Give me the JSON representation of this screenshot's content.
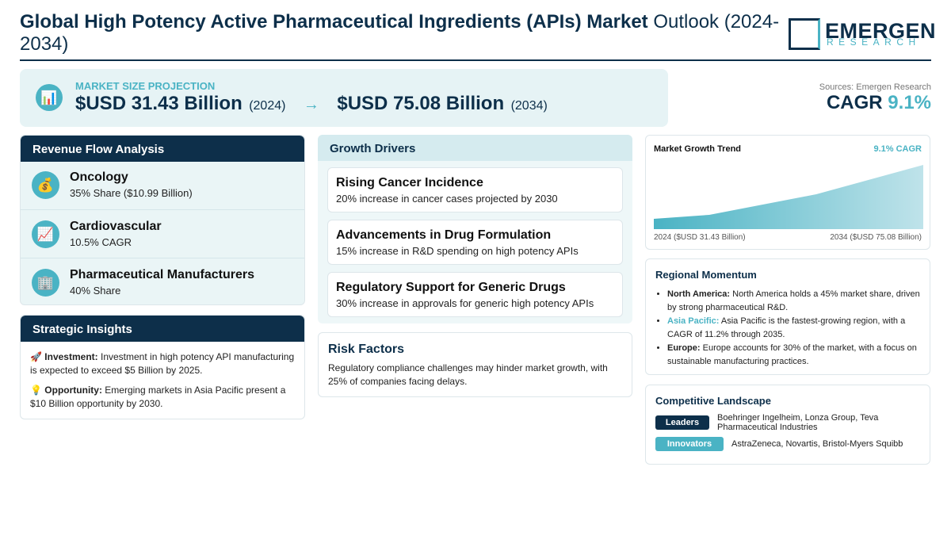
{
  "header": {
    "title_bold": "Global High Potency Active Pharmaceutical Ingredients (APIs) Market",
    "title_rest": "Outlook (2024-2034)",
    "logo_top": "EMERGEN",
    "logo_bottom": "RESEARCH"
  },
  "projection": {
    "icon": "📊",
    "label": "MARKET SIZE PROJECTION",
    "start_value": "$USD 31.43 Billion",
    "start_year": "(2024)",
    "arrow": "→",
    "end_value": "$USD 75.08 Billion",
    "end_year": "(2034)"
  },
  "summary": {
    "source": "Sources: Emergen Research",
    "cagr_label": "CAGR",
    "cagr_value": "9.1%"
  },
  "revenue_flow": {
    "title": "Revenue Flow Analysis",
    "items": [
      {
        "icon": "💰",
        "name": "Oncology",
        "detail": "35% Share ($10.99 Billion)"
      },
      {
        "icon": "📈",
        "name": "Cardiovascular",
        "detail": "10.5% CAGR"
      },
      {
        "icon": "🏢",
        "name": "Pharmaceutical Manufacturers",
        "detail": "40% Share"
      }
    ]
  },
  "strategic_insights": {
    "title": "Strategic Insights",
    "items": [
      {
        "icon": "🚀",
        "label": "Investment:",
        "text": "Investment in high potency API manufacturing is expected to exceed $5 Billion by 2025."
      },
      {
        "icon": "💡",
        "label": "Opportunity:",
        "text": "Emerging markets in Asia Pacific present a $10 Billion opportunity by 2030."
      }
    ]
  },
  "growth_drivers": {
    "title": "Growth Drivers",
    "items": [
      {
        "name": "Rising Cancer Incidence",
        "detail": "20% increase in cancer cases projected by 2030"
      },
      {
        "name": "Advancements in Drug Formulation",
        "detail": "15% increase in R&D spending on high potency APIs"
      },
      {
        "name": "Regulatory Support for Generic Drugs",
        "detail": "30% increase in approvals for generic high potency APIs"
      }
    ]
  },
  "risk_factors": {
    "title": "Risk Factors",
    "text": "Regulatory compliance challenges may hinder market growth, with 25% of companies facing delays."
  },
  "trend": {
    "title": "Market Growth Trend",
    "badge": "9.1% CAGR",
    "start_label": "2024 ($USD 31.43 Billion)",
    "end_label": "2034 ($USD 75.08 Billion)"
  },
  "regional_momentum": {
    "title": "Regional Momentum",
    "items": [
      {
        "label": "North America:",
        "text": "North America holds a 45% market share, driven by strong pharmaceutical R&D."
      },
      {
        "label": "Asia Pacific:",
        "text": "Asia Pacific is the fastest-growing region, with a CAGR of 11.2% through 2035."
      },
      {
        "label": "Europe:",
        "text": "Europe accounts for 30% of the market, with a focus on sustainable manufacturing practices."
      }
    ]
  },
  "competitive_landscape": {
    "title": "Competitive Landscape",
    "rows": [
      {
        "tag": "Leaders",
        "names": "Boehringer Ingelheim, Lonza Group, Teva Pharmaceutical Industries"
      },
      {
        "tag": "Innovators",
        "names": "AstraZeneca, Novartis, Bristol-Myers Squibb"
      }
    ]
  }
}
